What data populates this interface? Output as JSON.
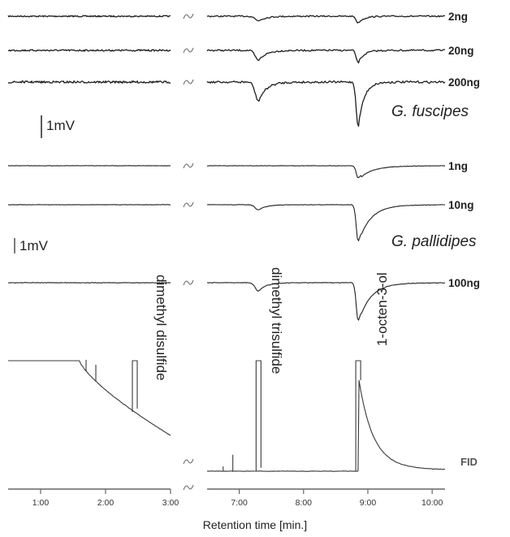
{
  "chart_data": {
    "type": "line",
    "x_unit": "min",
    "xlabel": "Retention time [min.]",
    "axis_segments": [
      {
        "range": [
          0.5,
          3.0
        ],
        "ticks": [
          {
            "value": 1.0,
            "label": "1:00"
          },
          {
            "value": 2.0,
            "label": "2:00"
          },
          {
            "value": 3.0,
            "label": "3:00"
          }
        ]
      },
      {
        "range": [
          6.5,
          10.2
        ],
        "ticks": [
          {
            "value": 7.0,
            "label": "7:00"
          },
          {
            "value": 8.0,
            "label": "8:00"
          },
          {
            "value": 9.0,
            "label": "9:00"
          },
          {
            "value": 10.0,
            "label": "10:00"
          }
        ]
      }
    ],
    "axis_break": "between 3:00 and 6:30",
    "species_groups": [
      {
        "name": "G. fuscipes",
        "scale_bar": "1mV",
        "traces": [
          {
            "dose": "2ng",
            "responses_mV": [
              {
                "t": 7.3,
                "amp": -0.2
              },
              {
                "t": 8.85,
                "amp": -0.3
              }
            ]
          },
          {
            "dose": "20ng",
            "responses_mV": [
              {
                "t": 7.3,
                "amp": -0.45
              },
              {
                "t": 8.85,
                "amp": -0.55
              }
            ]
          },
          {
            "dose": "200ng",
            "responses_mV": [
              {
                "t": 7.3,
                "amp": -0.85
              },
              {
                "t": 8.85,
                "amp": -2.0
              }
            ]
          }
        ]
      },
      {
        "name": "G. pallidipes",
        "scale_bar": "1mV",
        "traces": [
          {
            "dose": "1ng",
            "responses_mV": [
              {
                "t": 8.85,
                "amp": -0.8
              }
            ]
          },
          {
            "dose": "10ng",
            "responses_mV": [
              {
                "t": 7.3,
                "amp": -0.35
              },
              {
                "t": 8.85,
                "amp": -2.4
              }
            ]
          },
          {
            "dose": "100ng",
            "responses_mV": [
              {
                "t": 7.3,
                "amp": -0.55
              },
              {
                "t": 8.85,
                "amp": -2.5
              }
            ]
          }
        ]
      }
    ],
    "fid": {
      "label": "FID",
      "peaks": [
        {
          "t": 2.45,
          "compound": "dimethyl disulfide"
        },
        {
          "t": 7.3,
          "compound": "dimethyl trisulfide"
        },
        {
          "t": 8.85,
          "compound": "1-octen-3-ol"
        }
      ]
    }
  }
}
